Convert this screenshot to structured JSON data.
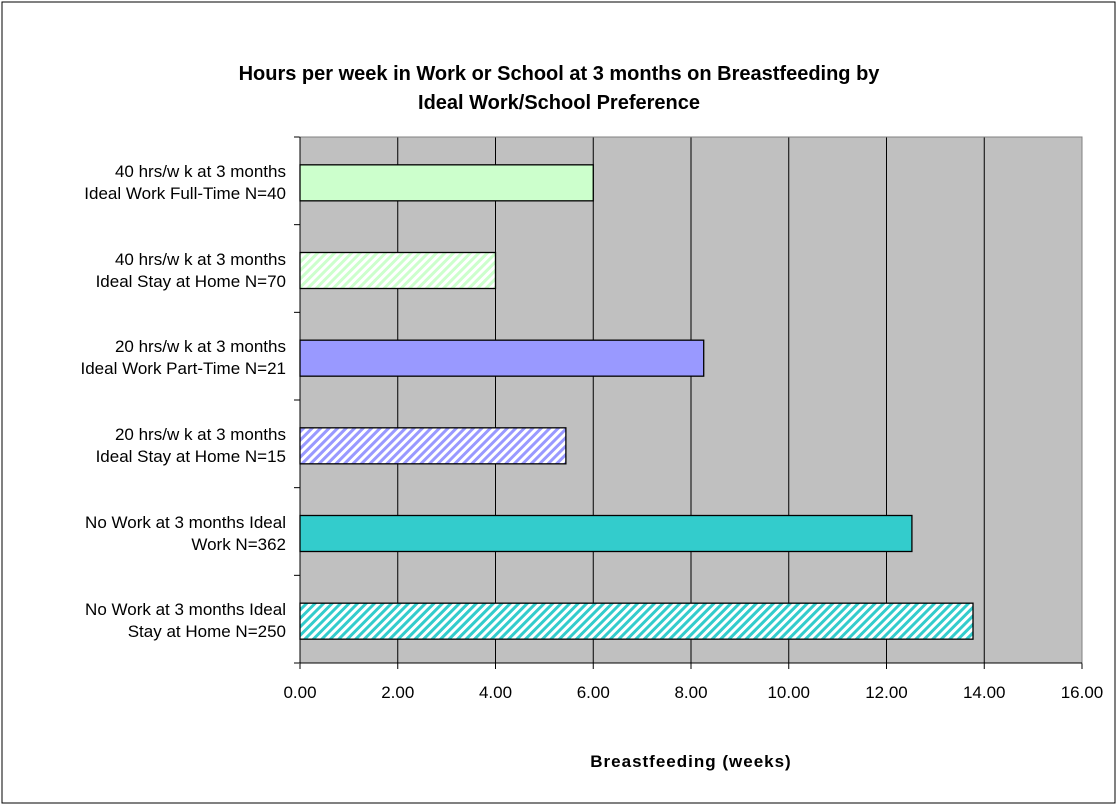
{
  "chart_data": {
    "type": "barh",
    "title": "Hours per week in Work or School at 3 months on Breastfeeding by\nIdeal Work/School Preference",
    "xlabel": "Breastfeeding (weeks)",
    "categories": [
      "40 hrs/w k at 3 months\nIdeal Work Full-Time N=40",
      "40 hrs/w k at 3 months\nIdeal Stay at Home N=70",
      "20 hrs/w k at 3 months\nIdeal Work Part-Time N=21",
      "20 hrs/w k at 3 months\nIdeal Stay at Home N=15",
      "No Work at 3 months Ideal\nWork N=362",
      "No Work at 3 months Ideal\nStay at Home N=250"
    ],
    "values": [
      6.0,
      4.0,
      8.26,
      5.44,
      12.52,
      13.77
    ],
    "colors": [
      "#ccffcc",
      "#ccffcc",
      "#9999ff",
      "#9999ff",
      "#33cccc",
      "#33cccc"
    ],
    "hatched": [
      false,
      true,
      false,
      true,
      false,
      true
    ],
    "xlim": [
      0,
      16
    ],
    "xticks": [
      {
        "value": 0,
        "label": "0.00"
      },
      {
        "value": 2,
        "label": "2.00"
      },
      {
        "value": 4,
        "label": "4.00"
      },
      {
        "value": 6,
        "label": "6.00"
      },
      {
        "value": 8,
        "label": "8.00"
      },
      {
        "value": 10,
        "label": "10.00"
      },
      {
        "value": 12,
        "label": "12.00"
      },
      {
        "value": 14,
        "label": "14.00"
      },
      {
        "value": 16,
        "label": "16.00"
      }
    ],
    "grid": true
  }
}
